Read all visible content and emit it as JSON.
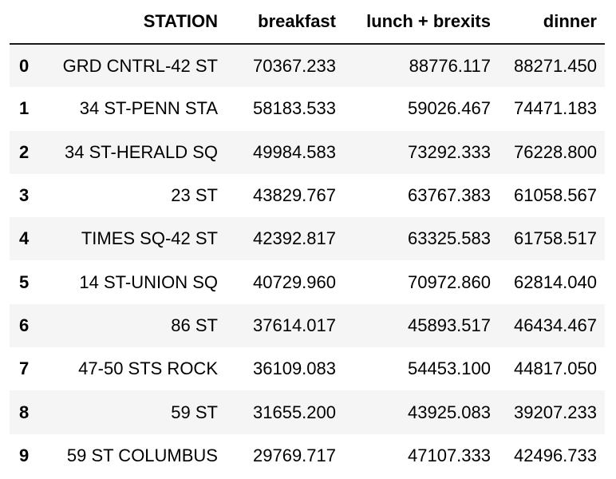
{
  "table": {
    "columns": [
      "",
      "STATION",
      "breakfast",
      "lunch + brexits",
      "dinner"
    ],
    "rows": [
      {
        "index": "0",
        "station": "GRD CNTRL-42 ST",
        "breakfast": "70367.233",
        "lunch": "88776.117",
        "dinner": "88271.450"
      },
      {
        "index": "1",
        "station": "34 ST-PENN STA",
        "breakfast": "58183.533",
        "lunch": "59026.467",
        "dinner": "74471.183"
      },
      {
        "index": "2",
        "station": "34 ST-HERALD SQ",
        "breakfast": "49984.583",
        "lunch": "73292.333",
        "dinner": "76228.800"
      },
      {
        "index": "3",
        "station": "23 ST",
        "breakfast": "43829.767",
        "lunch": "63767.383",
        "dinner": "61058.567"
      },
      {
        "index": "4",
        "station": "TIMES SQ-42 ST",
        "breakfast": "42392.817",
        "lunch": "63325.583",
        "dinner": "61758.517"
      },
      {
        "index": "5",
        "station": "14 ST-UNION SQ",
        "breakfast": "40729.960",
        "lunch": "70972.860",
        "dinner": "62814.040"
      },
      {
        "index": "6",
        "station": "86 ST",
        "breakfast": "37614.017",
        "lunch": "45893.517",
        "dinner": "46434.467"
      },
      {
        "index": "7",
        "station": "47-50 STS ROCK",
        "breakfast": "36109.083",
        "lunch": "54453.100",
        "dinner": "44817.050"
      },
      {
        "index": "8",
        "station": "59 ST",
        "breakfast": "31655.200",
        "lunch": "43925.083",
        "dinner": "39207.233"
      },
      {
        "index": "9",
        "station": "59 ST COLUMBUS",
        "breakfast": "29769.717",
        "lunch": "47107.333",
        "dinner": "42496.733"
      }
    ]
  },
  "colors": {
    "header_rule": "#1a1a1a",
    "stripe": "#f5f5f5",
    "background": "#ffffff"
  }
}
